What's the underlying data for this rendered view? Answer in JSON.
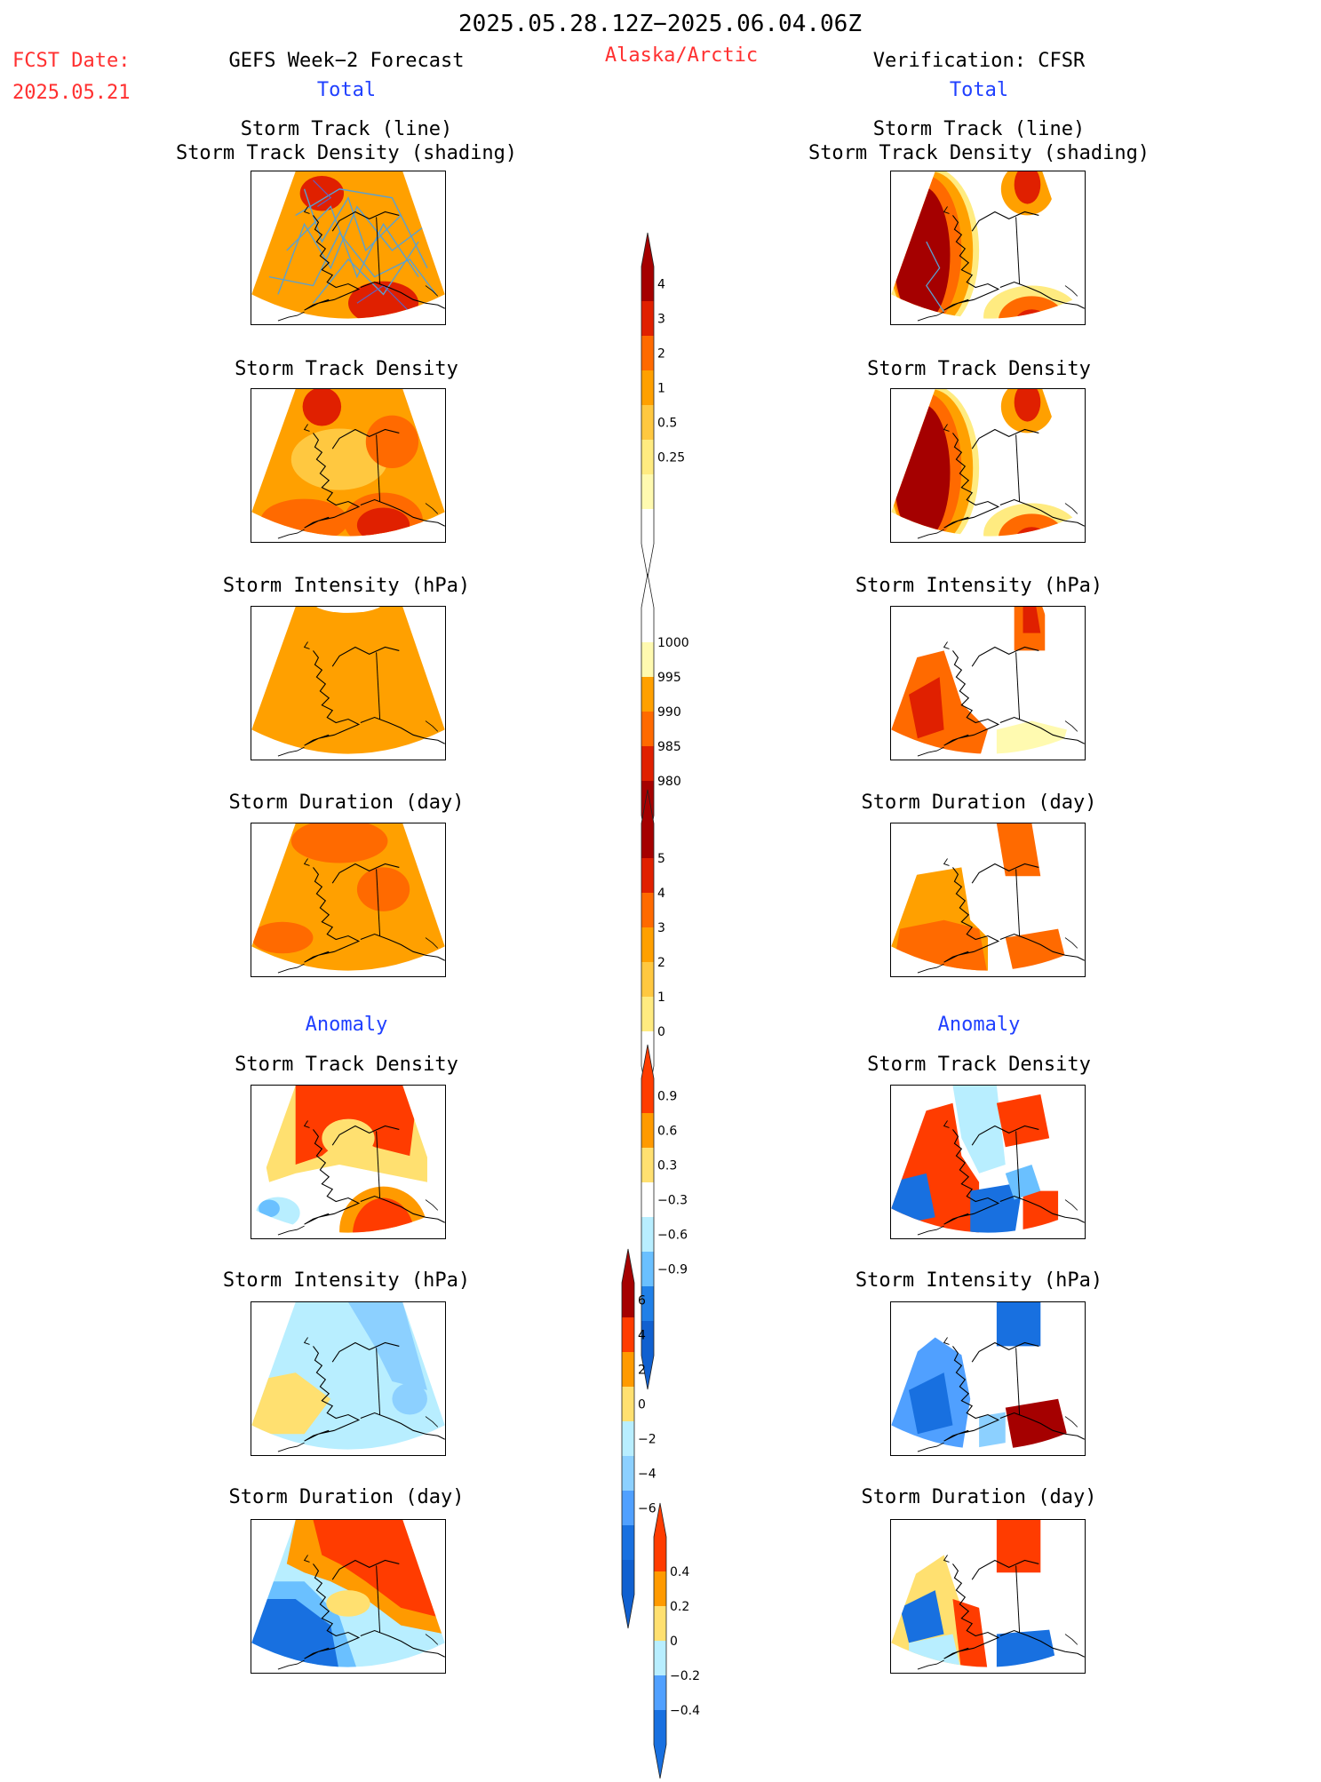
{
  "header": {
    "period": "2025.05.28.12Z−2025.06.04.06Z",
    "fcst_label": "FCST Date:",
    "fcst_date": "2025.05.21",
    "left_title": "GEFS Week−2 Forecast",
    "region": "Alaska/Arctic",
    "right_title": "Verification: CFSR",
    "total_label": "Total",
    "anomaly_label": "Anomaly"
  },
  "panels": {
    "track_title_1": "Storm Track (line)",
    "track_title_2": "Storm Track Density (shading)",
    "density": "Storm Track Density",
    "intensity": "Storm Intensity (hPa)",
    "duration": "Storm Duration (day)"
  },
  "colorbars": [
    {
      "id": "track-density",
      "labels": [
        "4",
        "3",
        "2",
        "1",
        "0.5",
        "0.25"
      ],
      "colors": [
        "#a50000",
        "#e02000",
        "#ff6a00",
        "#ffa000",
        "#ffc840",
        "#ffeb80",
        "#fffab0",
        "#ffffff"
      ],
      "arrow_top": true,
      "arrow_bottom_open": true
    },
    {
      "id": "intensity",
      "labels": [
        "1000",
        "995",
        "990",
        "985",
        "980"
      ],
      "colors": [
        "#ffffff",
        "#fffab0",
        "#ffa000",
        "#ff6a00",
        "#e02000",
        "#a50000"
      ],
      "arrow_top_open": true,
      "arrow_bottom": true
    },
    {
      "id": "duration",
      "labels": [
        "5",
        "4",
        "3",
        "2",
        "1",
        "0"
      ],
      "colors": [
        "#a50000",
        "#e02000",
        "#ff6a00",
        "#ffa000",
        "#ffc840",
        "#ffeb80",
        "#ffffff"
      ],
      "arrow_top": true,
      "arrow_bottom_open": true
    },
    {
      "id": "anom-density",
      "labels": [
        "0.9",
        "0.6",
        "0.3",
        "−0.3",
        "−0.6",
        "−0.9"
      ],
      "colors": [
        "#ff3c00",
        "#ff9a00",
        "#ffe070",
        "#ffffff",
        "#b8eeff",
        "#6ac0ff",
        "#2080e8",
        "#1060d0"
      ]
    },
    {
      "id": "anom-intensity",
      "labels": [
        "6",
        "4",
        "2",
        "0",
        "−2",
        "−4",
        "−6"
      ],
      "colors": [
        "#a50000",
        "#ff3c00",
        "#ff9a00",
        "#ffe070",
        "#b8eeff",
        "#8cd0ff",
        "#50a0ff",
        "#1870e0",
        "#1060d0"
      ]
    },
    {
      "id": "anom-duration",
      "labels": [
        "0.4",
        "0.2",
        "0",
        "−0.2",
        "−0.4"
      ],
      "colors": [
        "#ff3c00",
        "#ff9a00",
        "#ffe070",
        "#b8eeff",
        "#50a0ff",
        "#1870e0"
      ]
    }
  ],
  "colors": {
    "title_red": "#ff3030",
    "subtitle_blue": "#2040ff"
  }
}
